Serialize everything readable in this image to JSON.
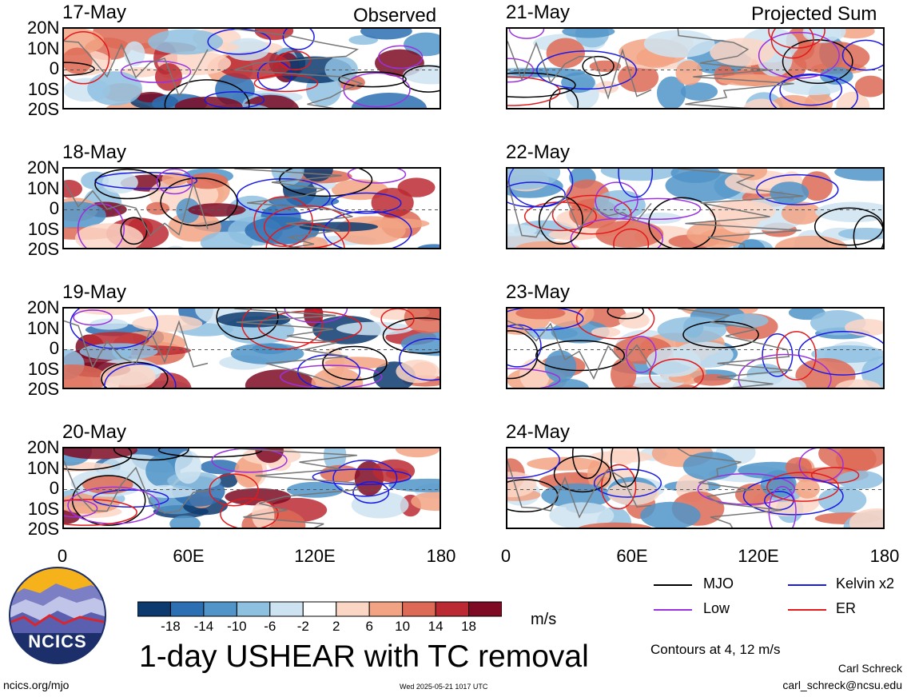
{
  "chart_data": [
    {
      "type": "heatmap",
      "title": "1-day USHEAR with TC removal",
      "header_left": "Observed",
      "header_right": "Projected Sum",
      "unit": "m/s",
      "panels_left": [
        "17-May",
        "18-May",
        "19-May",
        "20-May"
      ],
      "panels_right": [
        "21-May",
        "22-May",
        "23-May",
        "24-May"
      ],
      "lat_ticks": [
        "20N",
        "10N",
        "0",
        "10S",
        "20S"
      ],
      "lon_ticks": [
        "0",
        "60E",
        "120E",
        "180"
      ],
      "ylim": [
        -20,
        20
      ],
      "xlim": [
        0,
        180
      ],
      "colorbar_ticks": [
        "-18",
        "-14",
        "-10",
        "-6",
        "-2",
        "2",
        "6",
        "10",
        "14",
        "18"
      ],
      "colorbar_colors": [
        "#0d3a6e",
        "#2d6fb3",
        "#5094c8",
        "#8ec0e0",
        "#cde3f1",
        "#ffffff",
        "#fbd6c5",
        "#f2a384",
        "#dd6a56",
        "#bb2a33",
        "#7e0a24"
      ],
      "legend": [
        {
          "name": "MJO",
          "color": "#000000"
        },
        {
          "name": "Kelvin x2",
          "color": "#1a1ae6"
        },
        {
          "name": "Low",
          "color": "#9b30e0"
        },
        {
          "name": "ER",
          "color": "#e31a1c"
        }
      ],
      "contours_note": "Contours at 4, 12 m/s"
    }
  ],
  "footer": {
    "left": "ncics.org/mjo",
    "center": "Wed 2025-05-21 1017 UTC",
    "author": "Carl Schreck",
    "email": "carl_schreck@ncsu.edu"
  },
  "logo": {
    "text": "NCICS"
  }
}
